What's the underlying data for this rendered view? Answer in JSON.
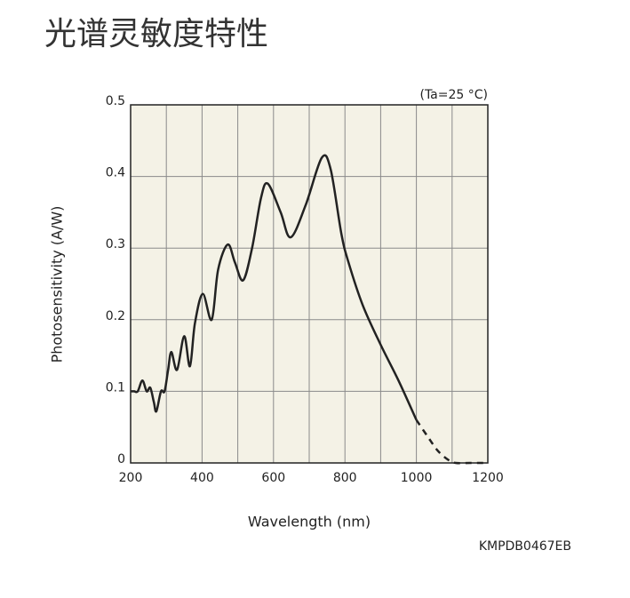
{
  "chart_data": {
    "type": "line",
    "title": "光谱灵敏度特性",
    "annotation": "(Ta=25 °C)",
    "code": "KMPDB0467EB",
    "xlabel": "Wavelength (nm)",
    "ylabel": "Photosensitivity (A/W)",
    "xlim": [
      200,
      1200
    ],
    "ylim": [
      0,
      0.5
    ],
    "xticks": [
      200,
      400,
      600,
      800,
      1000,
      1200
    ],
    "x_minor_ticks": [
      300,
      500,
      700,
      900,
      1100
    ],
    "yticks": [
      0,
      0.1,
      0.2,
      0.3,
      0.4,
      0.5
    ],
    "grid": true,
    "plot_background": "#f4f2e6",
    "series": [
      {
        "color": "#222222",
        "line_style": "solid",
        "x": [
          200,
          210,
          220,
          233,
          245,
          255,
          265,
          272,
          285,
          295,
          305,
          314,
          330,
          350,
          366,
          380,
          402,
          427,
          445,
          472,
          492,
          515,
          540,
          565,
          584,
          620,
          648,
          690,
          735,
          760,
          790,
          810,
          850,
          900,
          950,
          1000
        ],
        "values": [
          0.1,
          0.1,
          0.1,
          0.115,
          0.1,
          0.105,
          0.085,
          0.072,
          0.1,
          0.1,
          0.13,
          0.155,
          0.13,
          0.177,
          0.135,
          0.195,
          0.236,
          0.2,
          0.27,
          0.305,
          0.28,
          0.255,
          0.3,
          0.37,
          0.39,
          0.35,
          0.315,
          0.36,
          0.426,
          0.41,
          0.32,
          0.28,
          0.22,
          0.165,
          0.115,
          0.06
        ]
      },
      {
        "color": "#222222",
        "line_style": "dashed",
        "x": [
          1000,
          1030,
          1060,
          1090,
          1110,
          1150,
          1190
        ],
        "values": [
          0.06,
          0.038,
          0.017,
          0.004,
          0,
          0,
          0
        ]
      }
    ]
  }
}
